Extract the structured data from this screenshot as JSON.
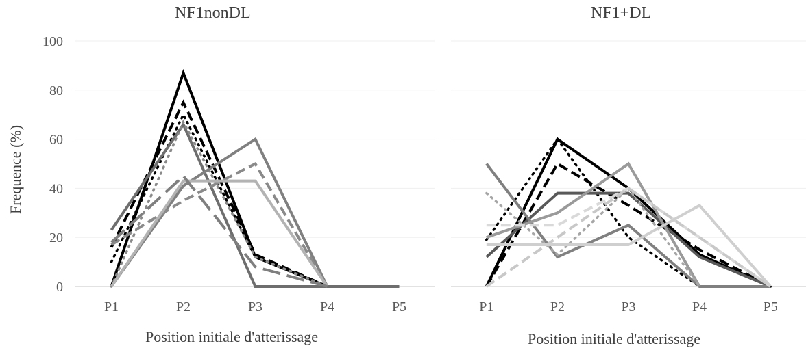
{
  "chart_data": [
    {
      "type": "line",
      "title": "NF1nonDL",
      "xlabel": "Position initiale d'atterissage",
      "ylabel": "Frequence (%)",
      "categories": [
        "P1",
        "P2",
        "P3",
        "P4",
        "P5"
      ],
      "ylim": [
        0,
        100
      ],
      "yticks": [
        0,
        20,
        40,
        60,
        80,
        100
      ],
      "grid": true,
      "series": [
        {
          "values": [
            0,
            87,
            12,
            0,
            0
          ],
          "color": "#000000",
          "dash": "solid",
          "width": 4
        },
        {
          "values": [
            16,
            75,
            13,
            0,
            null
          ],
          "color": "#000000",
          "dash": "dashed",
          "width": 4
        },
        {
          "values": [
            10,
            70,
            12,
            0,
            null
          ],
          "color": "#000000",
          "dash": "dotted",
          "width": 3.5
        },
        {
          "values": [
            23,
            66,
            0,
            0,
            0
          ],
          "color": "#6e6e6e",
          "dash": "solid",
          "width": 4
        },
        {
          "values": [
            0,
            67,
            12,
            0,
            null
          ],
          "color": "#8a8a8a",
          "dash": "dotted",
          "width": 3.5
        },
        {
          "values": [
            0,
            41,
            60,
            0,
            null
          ],
          "color": "#808080",
          "dash": "solid",
          "width": 4
        },
        {
          "values": [
            17,
            35,
            50,
            0,
            null
          ],
          "color": "#8a8a8a",
          "dash": "dashed",
          "width": 4
        },
        {
          "values": [
            0,
            43,
            43,
            0,
            null
          ],
          "color": "#b3b3b3",
          "dash": "solid",
          "width": 4
        },
        {
          "values": [
            18,
            45,
            8,
            0,
            null
          ],
          "color": "#7f7f7f",
          "dash": "longdash",
          "width": 4
        }
      ]
    },
    {
      "type": "line",
      "title": "NF1+DL",
      "xlabel": "Position initiale d'atterissage",
      "categories": [
        "P1",
        "P2",
        "P3",
        "P4",
        "P5"
      ],
      "ylim": [
        0,
        100
      ],
      "grid": true,
      "series": [
        {
          "values": [
            0,
            60,
            40,
            13,
            0
          ],
          "color": "#000000",
          "dash": "solid",
          "width": 4
        },
        {
          "values": [
            0,
            50,
            33,
            15,
            0
          ],
          "color": "#000000",
          "dash": "dashed",
          "width": 4
        },
        {
          "values": [
            19,
            60,
            20,
            0,
            0
          ],
          "color": "#000000",
          "dash": "dotted",
          "width": 3.5
        },
        {
          "values": [
            12,
            38,
            38,
            12,
            0
          ],
          "color": "#595959",
          "dash": "solid",
          "width": 4
        },
        {
          "values": [
            50,
            12,
            25,
            0,
            0
          ],
          "color": "#808080",
          "dash": "solid",
          "width": 4
        },
        {
          "values": [
            20,
            30,
            50,
            0,
            null
          ],
          "color": "#9a9a9a",
          "dash": "solid",
          "width": 4
        },
        {
          "values": [
            38,
            13,
            40,
            0,
            null
          ],
          "color": "#a6a6a6",
          "dash": "dotted",
          "width": 3.5
        },
        {
          "values": [
            25,
            25,
            40,
            20,
            0
          ],
          "color": "#d9d9d9",
          "dash": "dashed",
          "width": 4
        },
        {
          "values": [
            0,
            20,
            40,
            20,
            0
          ],
          "color": "#c8c8c8",
          "dash": "dashed",
          "width": 4
        },
        {
          "values": [
            17,
            17,
            17,
            33,
            0
          ],
          "color": "#cfcfcf",
          "dash": "solid",
          "width": 4
        }
      ]
    }
  ]
}
